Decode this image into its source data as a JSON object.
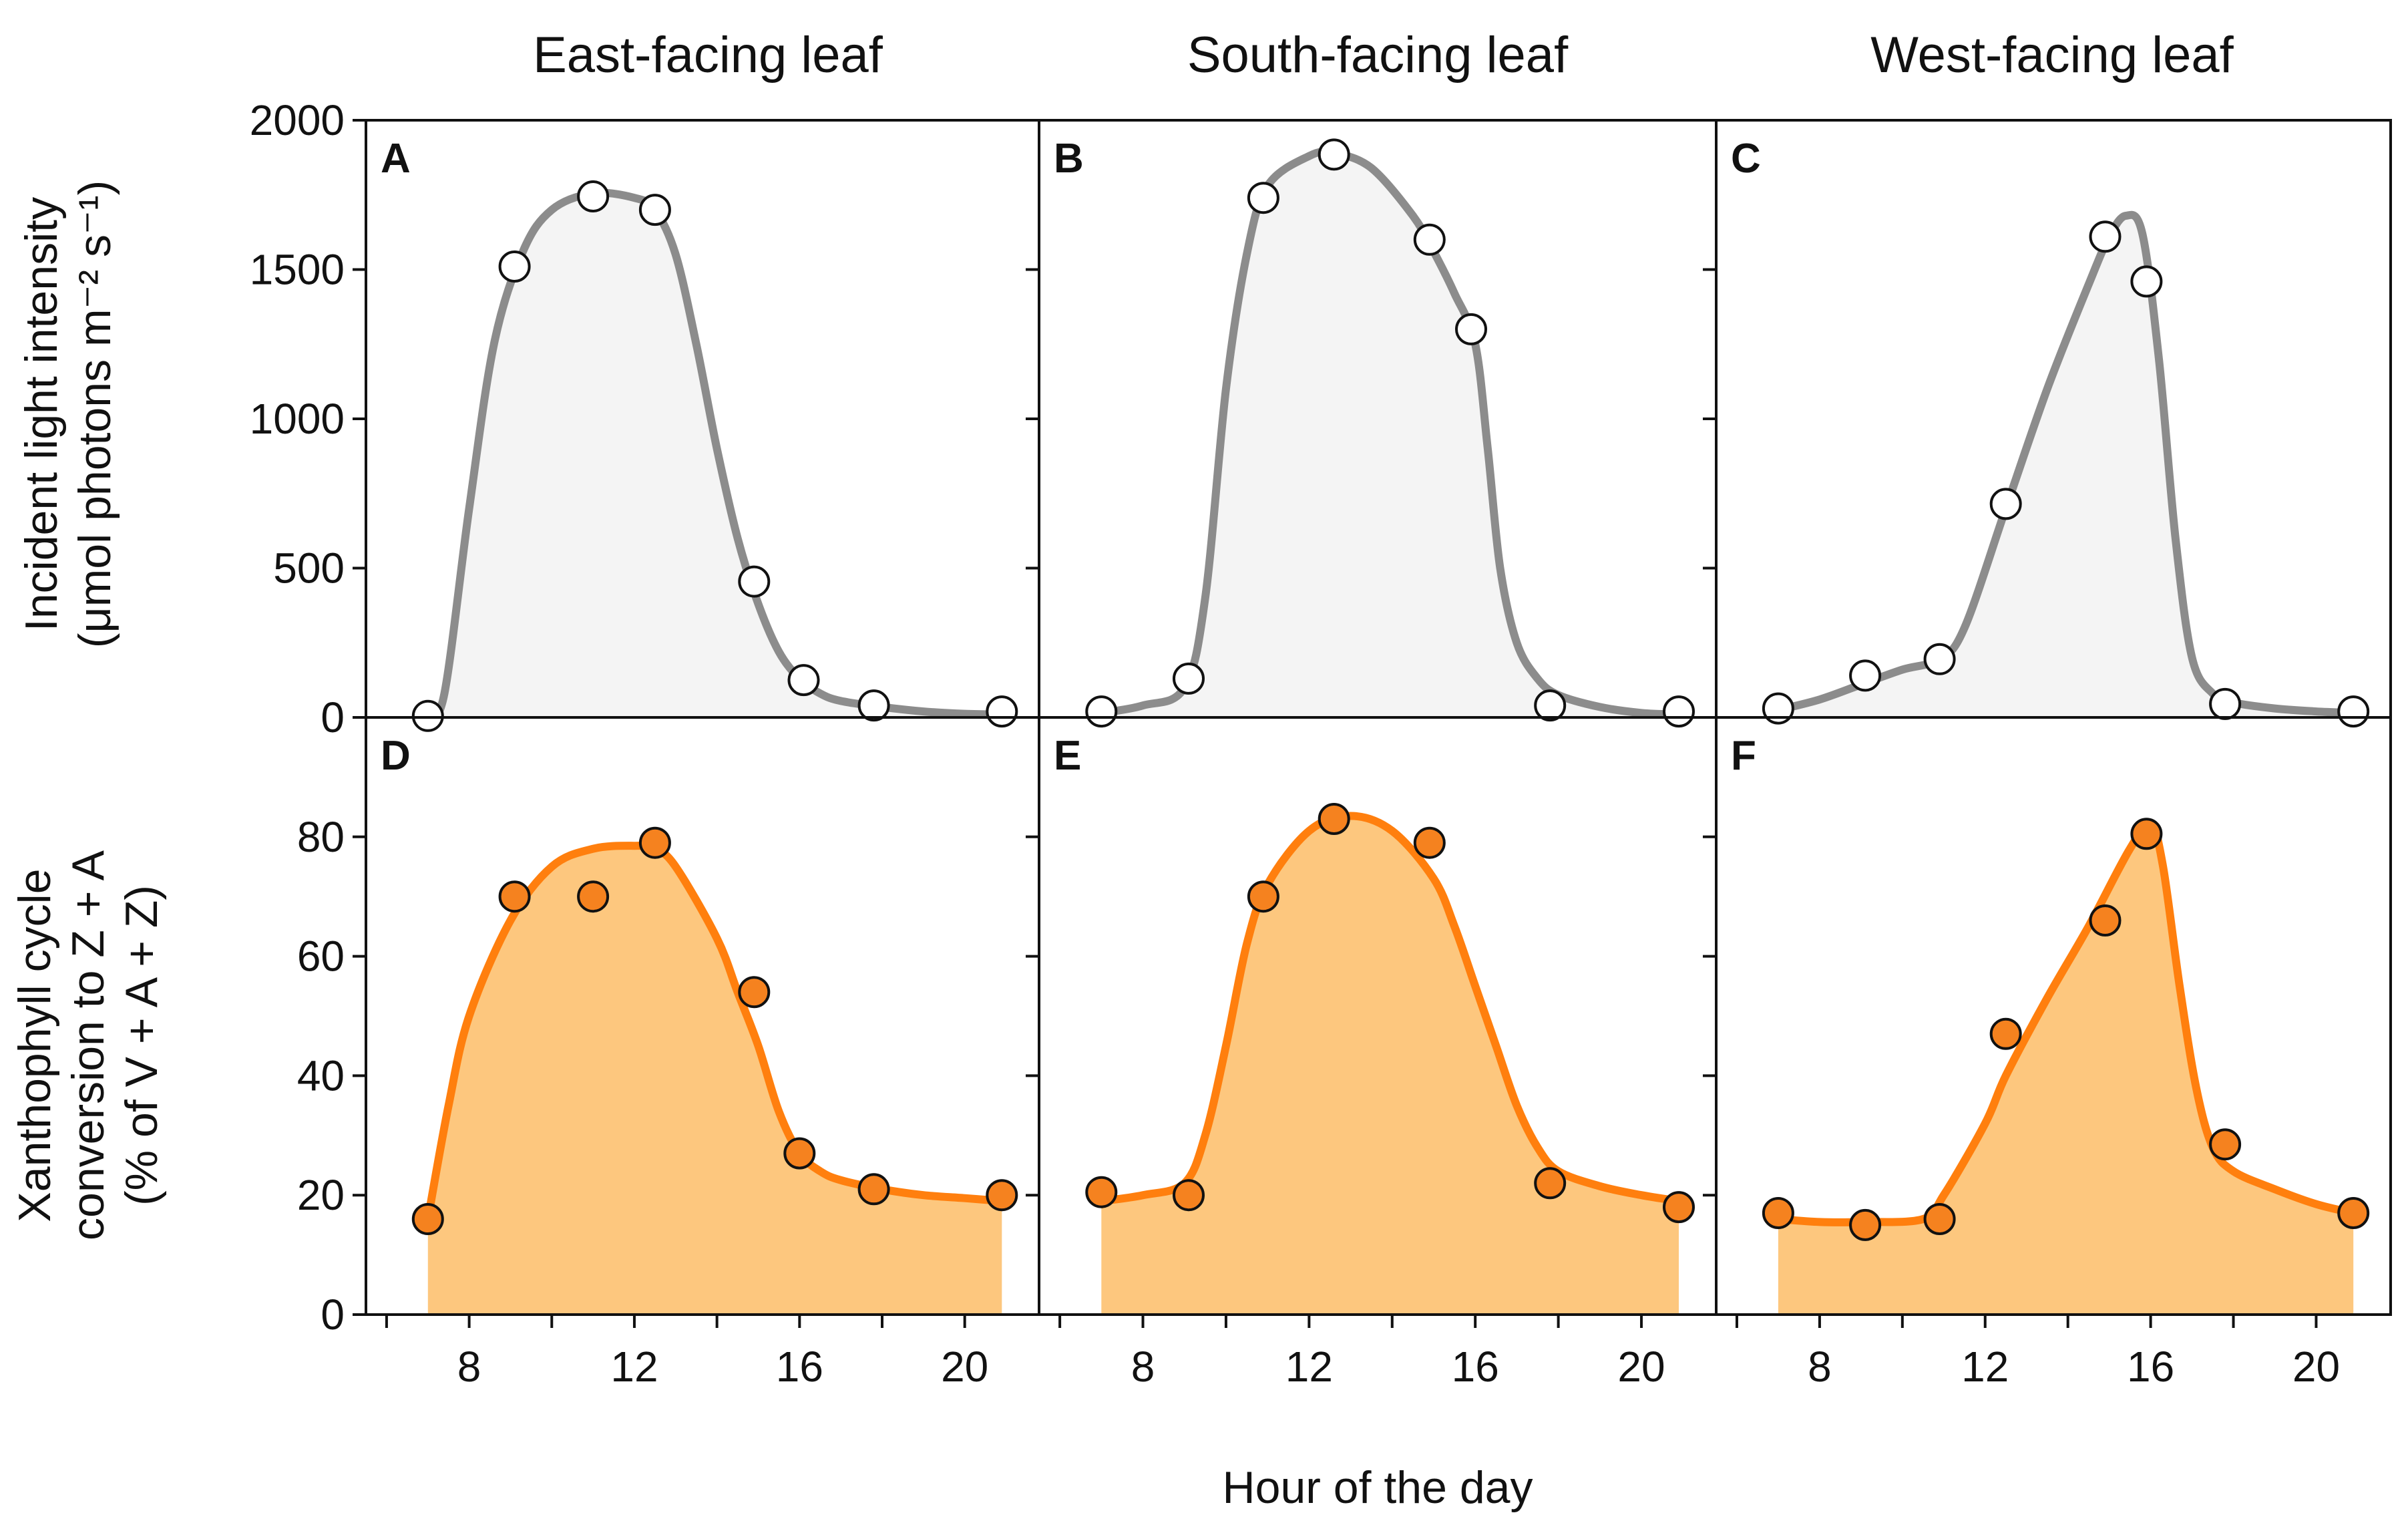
{
  "colors": {
    "light_curve": "#8c8c8c",
    "light_fill": "#f4f4f4",
    "light_marker": "#ffffff",
    "xanth_curve": "#ff7f0e",
    "xanth_fill": "#fdc77e",
    "xanth_marker": "#f5821f",
    "marker_edge": "#111111"
  },
  "chart_data": {
    "type": "line",
    "xlabel": "Hour of the day",
    "column_titles": [
      "East-facing leaf",
      "South-facing leaf",
      "West-facing leaf"
    ],
    "rows": [
      {
        "ylabel_lines": [
          "Incident light intensity",
          "(μmol photons m⁻² s⁻¹)"
        ],
        "ylim": [
          0,
          2000
        ],
        "yticks": [
          0,
          500,
          1000,
          1500,
          2000
        ],
        "marker": "open"
      },
      {
        "ylabel_lines": [
          "Xanthophyll cycle",
          "conversion to Z + A",
          "(% of V + A + Z)"
        ],
        "ylim": [
          0,
          100
        ],
        "yticks": [
          0,
          20,
          40,
          60,
          80
        ],
        "marker": "filled"
      }
    ],
    "xlim": [
      5.5,
      21.8
    ],
    "xticks": [
      8,
      12,
      16,
      20
    ],
    "panels": [
      {
        "letter": "A",
        "row": 0,
        "col": 0,
        "points": [
          [
            7,
            5
          ],
          [
            9.1,
            1510
          ],
          [
            11,
            1745
          ],
          [
            12.5,
            1700
          ],
          [
            14.9,
            455
          ],
          [
            16.1,
            125
          ],
          [
            17.8,
            40
          ],
          [
            20.9,
            20
          ]
        ],
        "curve": [
          [
            7,
            0
          ],
          [
            7.4,
            80
          ],
          [
            8,
            700
          ],
          [
            8.6,
            1250
          ],
          [
            9.3,
            1560
          ],
          [
            10,
            1700
          ],
          [
            11,
            1755
          ],
          [
            12,
            1740
          ],
          [
            12.5,
            1700
          ],
          [
            13,
            1550
          ],
          [
            13.5,
            1250
          ],
          [
            14,
            900
          ],
          [
            14.5,
            600
          ],
          [
            15,
            380
          ],
          [
            15.5,
            220
          ],
          [
            16,
            130
          ],
          [
            16.5,
            80
          ],
          [
            17,
            55
          ],
          [
            18,
            35
          ],
          [
            19,
            20
          ],
          [
            20,
            12
          ],
          [
            20.9,
            10
          ]
        ]
      },
      {
        "letter": "B",
        "row": 0,
        "col": 1,
        "points": [
          [
            7,
            20
          ],
          [
            9.1,
            130
          ],
          [
            10.9,
            1740
          ],
          [
            12.6,
            1885
          ],
          [
            14.9,
            1600
          ],
          [
            15.9,
            1300
          ],
          [
            17.8,
            40
          ],
          [
            20.9,
            20
          ]
        ],
        "curve": [
          [
            7,
            15
          ],
          [
            8,
            40
          ],
          [
            9,
            100
          ],
          [
            9.5,
            400
          ],
          [
            10,
            1100
          ],
          [
            10.5,
            1550
          ],
          [
            11,
            1780
          ],
          [
            12,
            1880
          ],
          [
            12.6,
            1890
          ],
          [
            13.5,
            1840
          ],
          [
            14.5,
            1680
          ],
          [
            15,
            1560
          ],
          [
            15.5,
            1420
          ],
          [
            16,
            1250
          ],
          [
            16.3,
            900
          ],
          [
            16.6,
            500
          ],
          [
            17,
            250
          ],
          [
            17.5,
            130
          ],
          [
            18,
            75
          ],
          [
            19,
            35
          ],
          [
            20,
            15
          ],
          [
            20.9,
            10
          ]
        ]
      },
      {
        "letter": "C",
        "row": 0,
        "col": 2,
        "points": [
          [
            7,
            30
          ],
          [
            9.1,
            140
          ],
          [
            10.9,
            195
          ],
          [
            12.5,
            715
          ],
          [
            14.9,
            1610
          ],
          [
            15.9,
            1460
          ],
          [
            17.8,
            45
          ],
          [
            20.9,
            20
          ]
        ],
        "curve": [
          [
            7,
            25
          ],
          [
            8,
            60
          ],
          [
            9,
            110
          ],
          [
            10,
            160
          ],
          [
            10.9,
            195
          ],
          [
            11.5,
            300
          ],
          [
            12.5,
            700
          ],
          [
            13.5,
            1100
          ],
          [
            14.5,
            1450
          ],
          [
            15,
            1610
          ],
          [
            15.4,
            1680
          ],
          [
            15.8,
            1620
          ],
          [
            16.2,
            1200
          ],
          [
            16.6,
            600
          ],
          [
            17,
            200
          ],
          [
            17.5,
            80
          ],
          [
            18,
            50
          ],
          [
            19,
            30
          ],
          [
            20,
            20
          ],
          [
            20.9,
            15
          ]
        ]
      },
      {
        "letter": "D",
        "row": 1,
        "col": 0,
        "points": [
          [
            7,
            16
          ],
          [
            9.1,
            70
          ],
          [
            11,
            70
          ],
          [
            12.5,
            79
          ],
          [
            14.9,
            54
          ],
          [
            16,
            27
          ],
          [
            17.8,
            21
          ],
          [
            20.9,
            20
          ]
        ],
        "curve": [
          [
            7,
            16
          ],
          [
            7.5,
            35
          ],
          [
            8,
            50
          ],
          [
            9,
            66
          ],
          [
            10,
            75
          ],
          [
            11,
            78
          ],
          [
            12,
            78.5
          ],
          [
            12.5,
            78
          ],
          [
            13,
            75
          ],
          [
            14,
            63
          ],
          [
            14.5,
            54
          ],
          [
            15,
            45
          ],
          [
            15.5,
            34
          ],
          [
            16,
            27
          ],
          [
            16.5,
            24
          ],
          [
            17,
            22.5
          ],
          [
            18,
            21
          ],
          [
            19,
            20
          ],
          [
            20,
            19.5
          ],
          [
            20.9,
            19
          ]
        ]
      },
      {
        "letter": "E",
        "row": 1,
        "col": 1,
        "points": [
          [
            7,
            20.5
          ],
          [
            9.1,
            20
          ],
          [
            10.9,
            70
          ],
          [
            12.6,
            83
          ],
          [
            14.9,
            79
          ],
          [
            17.8,
            22
          ],
          [
            20.9,
            18
          ]
        ],
        "curve": [
          [
            7,
            19
          ],
          [
            8,
            20
          ],
          [
            9,
            22
          ],
          [
            9.5,
            30
          ],
          [
            10,
            45
          ],
          [
            10.5,
            62
          ],
          [
            11,
            72
          ],
          [
            12,
            81
          ],
          [
            13,
            83.5
          ],
          [
            14,
            81
          ],
          [
            15,
            73
          ],
          [
            15.5,
            65
          ],
          [
            16,
            55
          ],
          [
            16.5,
            45
          ],
          [
            17,
            35
          ],
          [
            17.5,
            28
          ],
          [
            18,
            24
          ],
          [
            19,
            21.5
          ],
          [
            20,
            20
          ],
          [
            20.9,
            19
          ]
        ]
      },
      {
        "letter": "F",
        "row": 1,
        "col": 2,
        "points": [
          [
            7,
            17
          ],
          [
            9.1,
            15
          ],
          [
            10.9,
            16
          ],
          [
            12.5,
            47
          ],
          [
            14.9,
            66
          ],
          [
            15.9,
            80.5
          ],
          [
            17.8,
            28.5
          ],
          [
            20.9,
            17
          ]
        ],
        "curve": [
          [
            7,
            16
          ],
          [
            8,
            15.5
          ],
          [
            9,
            15.5
          ],
          [
            10.5,
            16
          ],
          [
            11,
            20
          ],
          [
            12,
            32
          ],
          [
            12.5,
            40
          ],
          [
            13.5,
            53
          ],
          [
            14.5,
            65
          ],
          [
            15.5,
            78
          ],
          [
            16,
            82
          ],
          [
            16.3,
            75
          ],
          [
            16.7,
            55
          ],
          [
            17.1,
            38
          ],
          [
            17.5,
            28
          ],
          [
            18,
            24
          ],
          [
            19,
            21
          ],
          [
            20,
            18.5
          ],
          [
            20.9,
            17
          ]
        ]
      }
    ]
  }
}
